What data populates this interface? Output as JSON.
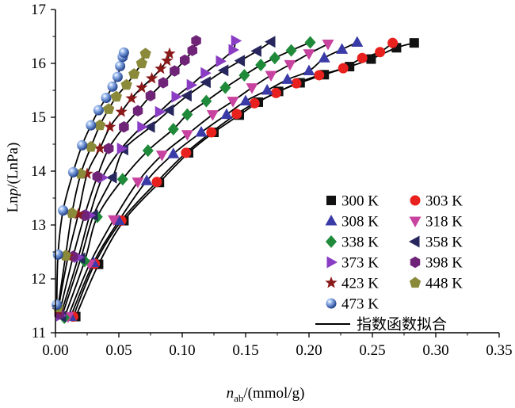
{
  "chart_data": {
    "type": "scatter",
    "title": "",
    "xlabel": {
      "prefix": "n",
      "sub": "ab",
      "suffix": "/(mmol/g)"
    },
    "ylabel": {
      "prefix": "Ln",
      "italic": "p",
      "suffix": "/(LnPa)"
    },
    "xlim": [
      0,
      0.35
    ],
    "ylim": [
      11,
      17
    ],
    "xticks": [
      0.0,
      0.05,
      0.1,
      0.15,
      0.2,
      0.25,
      0.3,
      0.35
    ],
    "xtick_labels": [
      "0.00",
      "0.05",
      "0.10",
      "0.15",
      "0.20",
      "0.25",
      "0.30",
      "0.35"
    ],
    "yticks": [
      11,
      12,
      13,
      14,
      15,
      16,
      17
    ],
    "ytick_labels": [
      "11",
      "12",
      "13",
      "14",
      "15",
      "16",
      "17"
    ],
    "grid": false,
    "legend_position": "bottom-right",
    "fit_label": "指数函数拟合",
    "series": [
      {
        "name": "300 K",
        "marker": "square",
        "color": "#111111",
        "points": [
          [
            0.016,
            11.3
          ],
          [
            0.034,
            12.27
          ],
          [
            0.054,
            13.08
          ],
          [
            0.082,
            13.79
          ],
          [
            0.105,
            14.34
          ],
          [
            0.125,
            14.72
          ],
          [
            0.145,
            15.04
          ],
          [
            0.16,
            15.28
          ],
          [
            0.176,
            15.48
          ],
          [
            0.193,
            15.64
          ],
          [
            0.212,
            15.79
          ],
          [
            0.232,
            15.94
          ],
          [
            0.249,
            16.08
          ],
          [
            0.269,
            16.29
          ],
          [
            0.283,
            16.38
          ]
        ]
      },
      {
        "name": "303 K",
        "marker": "circle",
        "color": "#e8201e",
        "points": [
          [
            0.014,
            11.3
          ],
          [
            0.031,
            12.28
          ],
          [
            0.052,
            13.08
          ],
          [
            0.08,
            13.8
          ],
          [
            0.103,
            14.34
          ],
          [
            0.123,
            14.72
          ],
          [
            0.143,
            15.06
          ],
          [
            0.157,
            15.26
          ],
          [
            0.174,
            15.45
          ],
          [
            0.19,
            15.63
          ],
          [
            0.208,
            15.78
          ],
          [
            0.227,
            15.91
          ],
          [
            0.242,
            16.1
          ],
          [
            0.256,
            16.21
          ],
          [
            0.266,
            16.38
          ]
        ]
      },
      {
        "name": "308 K",
        "marker": "triangle-up",
        "color": "#3b3ba8",
        "points": [
          [
            0.012,
            11.3
          ],
          [
            0.03,
            12.3
          ],
          [
            0.05,
            13.08
          ],
          [
            0.072,
            13.82
          ],
          [
            0.093,
            14.32
          ],
          [
            0.115,
            14.72
          ],
          [
            0.135,
            15.05
          ],
          [
            0.15,
            15.3
          ],
          [
            0.167,
            15.5
          ],
          [
            0.183,
            15.7
          ],
          [
            0.2,
            15.86
          ],
          [
            0.212,
            16.1
          ],
          [
            0.226,
            16.26
          ],
          [
            0.238,
            16.39
          ]
        ]
      },
      {
        "name": "318 K",
        "marker": "triangle-down",
        "color": "#c8439f",
        "points": [
          [
            0.01,
            11.3
          ],
          [
            0.027,
            12.28
          ],
          [
            0.046,
            13.1
          ],
          [
            0.065,
            13.8
          ],
          [
            0.084,
            14.3
          ],
          [
            0.104,
            14.68
          ],
          [
            0.124,
            15.05
          ],
          [
            0.14,
            15.3
          ],
          [
            0.155,
            15.55
          ],
          [
            0.17,
            15.78
          ],
          [
            0.185,
            15.98
          ],
          [
            0.2,
            16.18
          ],
          [
            0.215,
            16.36
          ]
        ]
      },
      {
        "name": "338 K",
        "marker": "diamond",
        "color": "#1f8a3a",
        "points": [
          [
            0.007,
            11.28
          ],
          [
            0.023,
            12.33
          ],
          [
            0.033,
            13.15
          ],
          [
            0.053,
            13.85
          ],
          [
            0.073,
            14.38
          ],
          [
            0.093,
            14.78
          ],
          [
            0.104,
            15.05
          ],
          [
            0.119,
            15.3
          ],
          [
            0.134,
            15.55
          ],
          [
            0.149,
            15.78
          ],
          [
            0.162,
            15.97
          ],
          [
            0.173,
            16.1
          ],
          [
            0.186,
            16.24
          ],
          [
            0.201,
            16.39
          ]
        ]
      },
      {
        "name": "358 K",
        "marker": "triangle-left",
        "color": "#27275e",
        "points": [
          [
            0.005,
            11.3
          ],
          [
            0.02,
            12.38
          ],
          [
            0.03,
            13.18
          ],
          [
            0.045,
            13.88
          ],
          [
            0.054,
            14.4
          ],
          [
            0.075,
            14.82
          ],
          [
            0.09,
            15.13
          ],
          [
            0.104,
            15.4
          ],
          [
            0.119,
            15.65
          ],
          [
            0.133,
            15.87
          ],
          [
            0.146,
            16.05
          ],
          [
            0.159,
            16.23
          ],
          [
            0.17,
            16.4
          ]
        ]
      },
      {
        "name": "373 K",
        "marker": "triangle-right",
        "color": "#8a3dc2",
        "points": [
          [
            0.004,
            11.32
          ],
          [
            0.018,
            12.4
          ],
          [
            0.027,
            13.18
          ],
          [
            0.037,
            13.88
          ],
          [
            0.052,
            14.42
          ],
          [
            0.068,
            14.82
          ],
          [
            0.082,
            15.1
          ],
          [
            0.095,
            15.38
          ],
          [
            0.107,
            15.6
          ],
          [
            0.118,
            15.82
          ],
          [
            0.13,
            16.04
          ],
          [
            0.14,
            16.25
          ],
          [
            0.142,
            16.42
          ]
        ]
      },
      {
        "name": "398 K",
        "marker": "hexagon",
        "color": "#702478",
        "points": [
          [
            0.003,
            11.35
          ],
          [
            0.014,
            12.42
          ],
          [
            0.023,
            13.18
          ],
          [
            0.033,
            13.9
          ],
          [
            0.042,
            14.42
          ],
          [
            0.054,
            14.82
          ],
          [
            0.065,
            15.12
          ],
          [
            0.075,
            15.4
          ],
          [
            0.085,
            15.64
          ],
          [
            0.094,
            15.86
          ],
          [
            0.102,
            16.06
          ],
          [
            0.108,
            16.24
          ],
          [
            0.111,
            16.42
          ]
        ]
      },
      {
        "name": "423 K",
        "marker": "star",
        "color": "#8a1a1a",
        "points": [
          [
            0.002,
            11.42
          ],
          [
            0.01,
            12.42
          ],
          [
            0.018,
            13.2
          ],
          [
            0.025,
            13.95
          ],
          [
            0.035,
            14.42
          ],
          [
            0.043,
            14.82
          ],
          [
            0.052,
            15.1
          ],
          [
            0.06,
            15.35
          ],
          [
            0.068,
            15.55
          ],
          [
            0.076,
            15.72
          ],
          [
            0.083,
            15.9
          ],
          [
            0.088,
            16.05
          ],
          [
            0.09,
            16.18
          ]
        ]
      },
      {
        "name": "448 K",
        "marker": "pentagon",
        "color": "#8a8a3a",
        "points": [
          [
            0.002,
            11.47
          ],
          [
            0.008,
            12.43
          ],
          [
            0.013,
            13.22
          ],
          [
            0.02,
            13.95
          ],
          [
            0.028,
            14.45
          ],
          [
            0.035,
            14.85
          ],
          [
            0.042,
            15.15
          ],
          [
            0.048,
            15.38
          ],
          [
            0.056,
            15.6
          ],
          [
            0.062,
            15.8
          ],
          [
            0.068,
            16.0
          ],
          [
            0.071,
            16.18
          ]
        ]
      },
      {
        "name": "473 K",
        "marker": "sphere",
        "color": "#3a62b8",
        "points": [
          [
            0.001,
            11.52
          ],
          [
            0.002,
            12.45
          ],
          [
            0.006,
            13.27
          ],
          [
            0.014,
            13.98
          ],
          [
            0.021,
            14.48
          ],
          [
            0.028,
            14.85
          ],
          [
            0.034,
            15.13
          ],
          [
            0.04,
            15.36
          ],
          [
            0.045,
            15.57
          ],
          [
            0.049,
            15.75
          ],
          [
            0.051,
            15.95
          ],
          [
            0.053,
            16.12
          ],
          [
            0.054,
            16.2
          ]
        ]
      }
    ]
  }
}
